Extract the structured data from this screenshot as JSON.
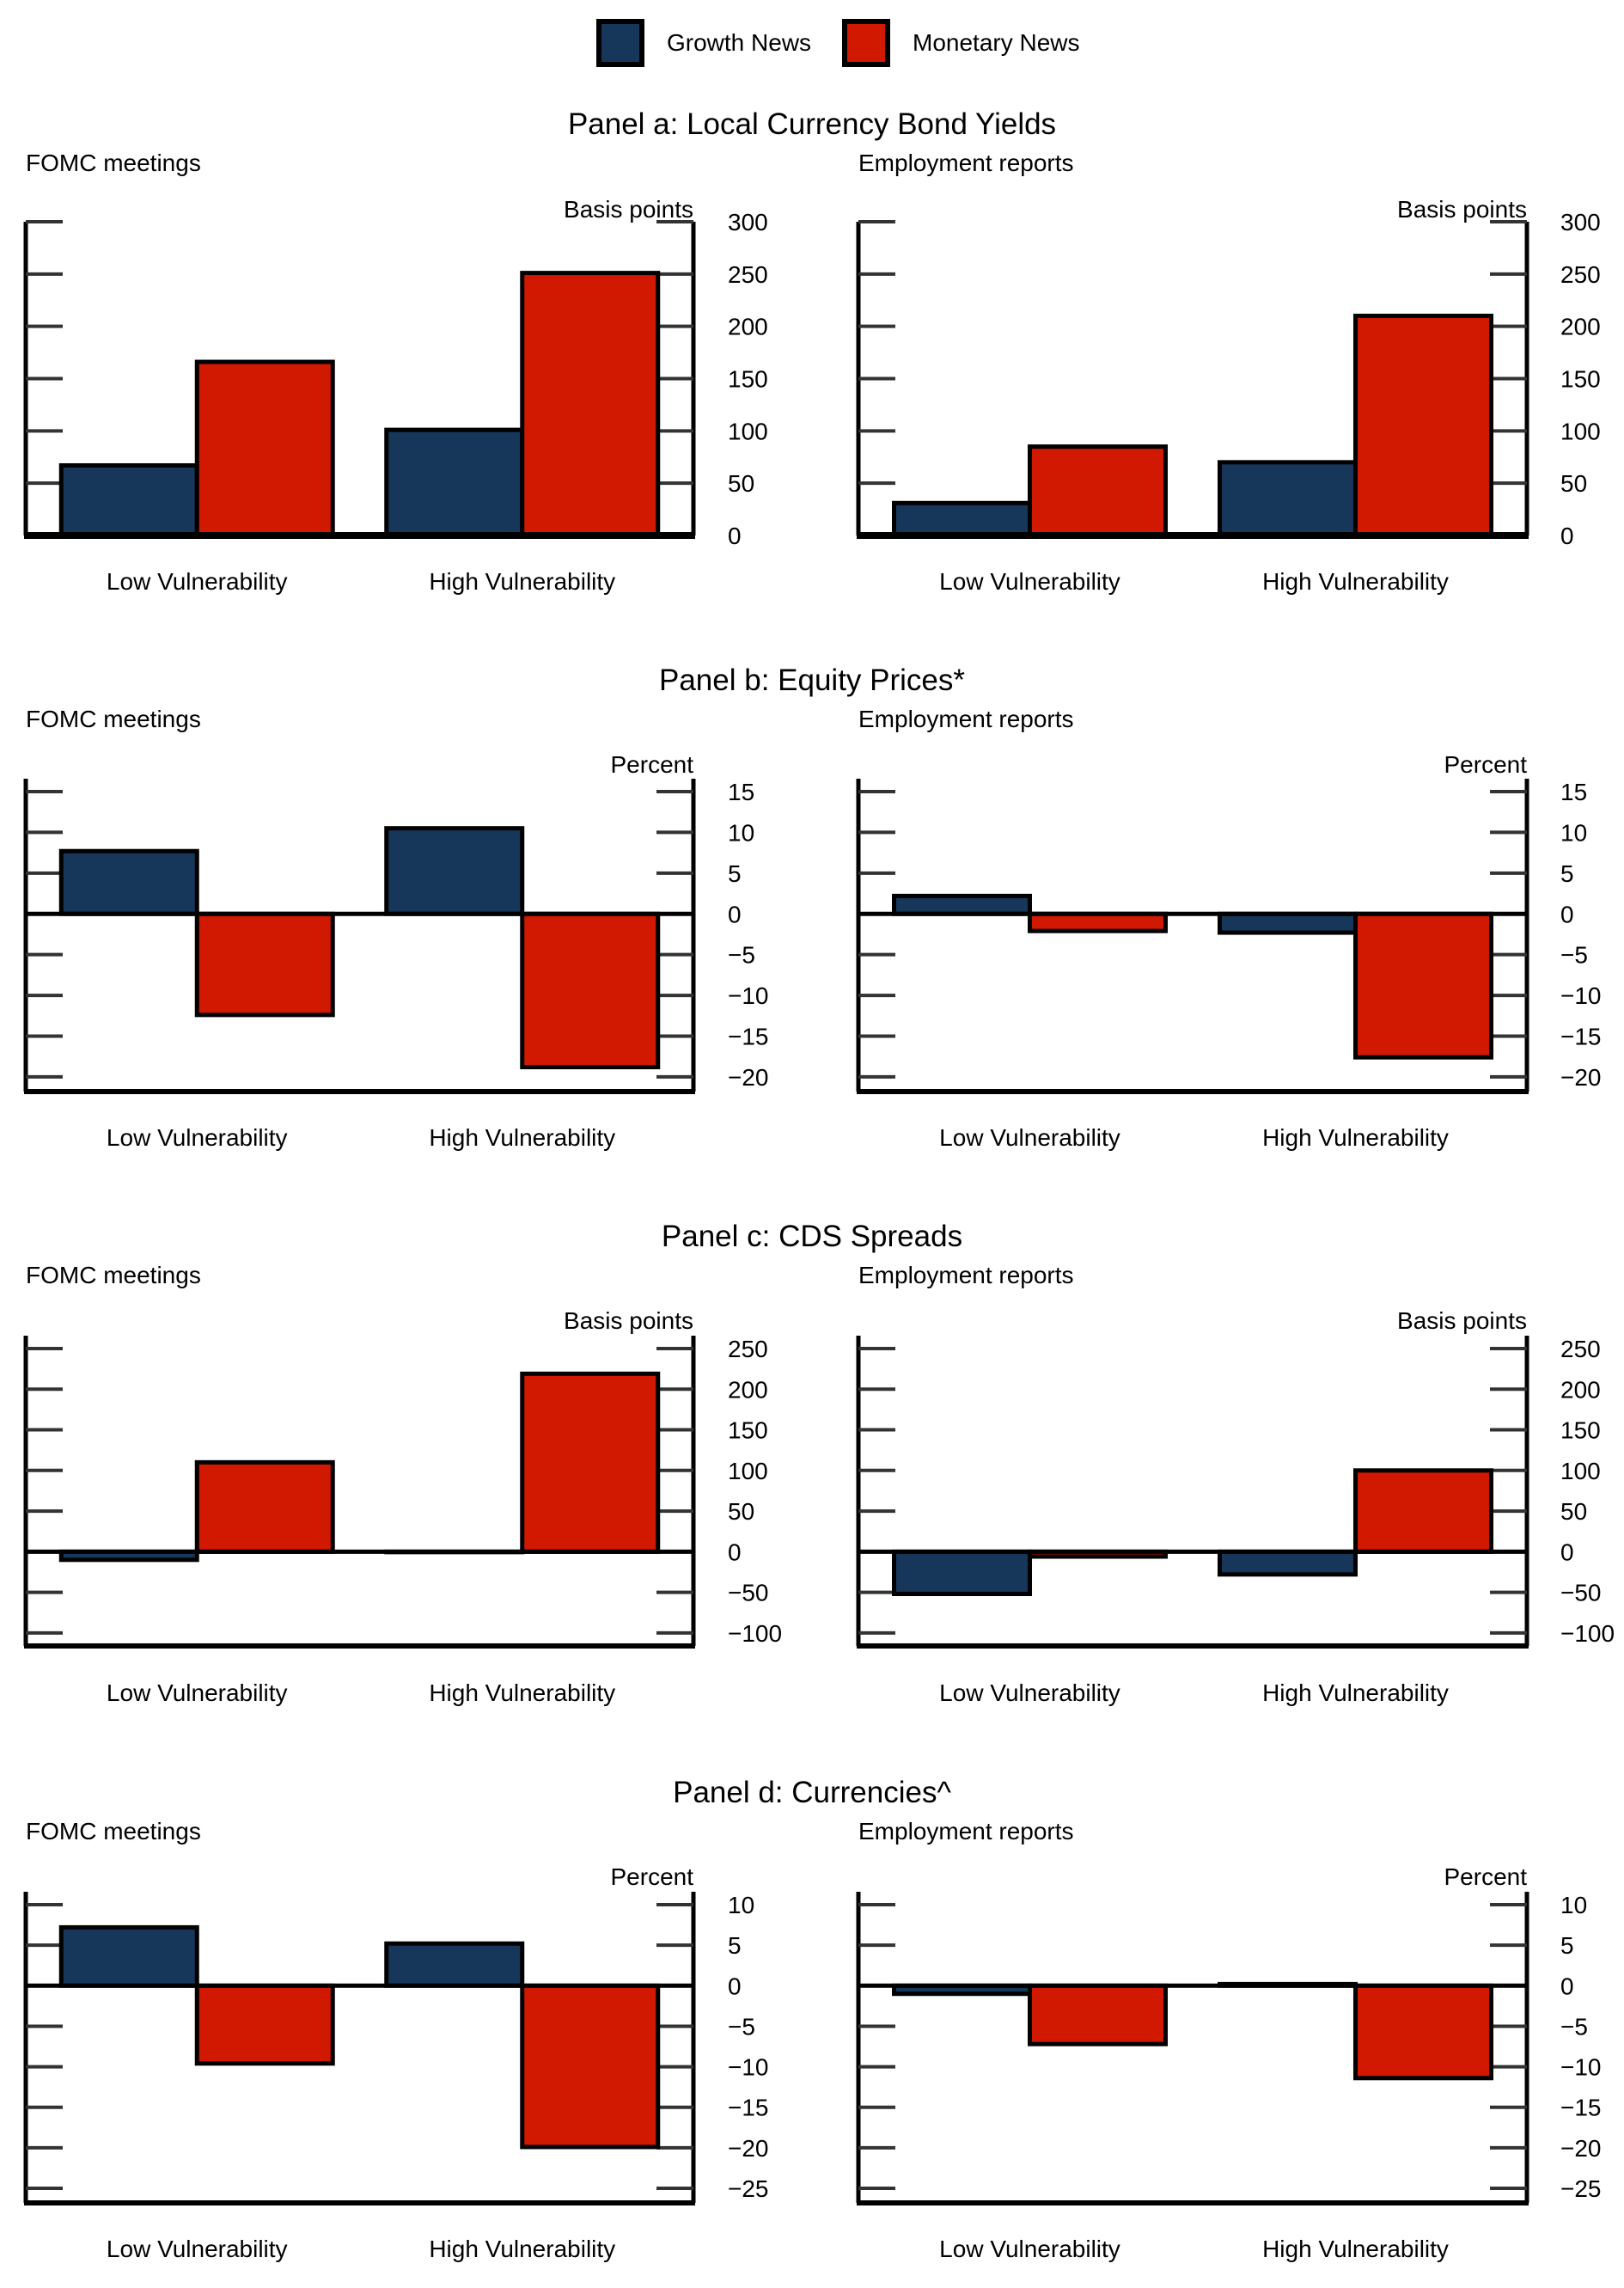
{
  "legend": [
    {
      "name": "Growth News",
      "color": "#17375a"
    },
    {
      "name": "Monetary News",
      "color": "#d11800"
    }
  ],
  "chart_data": [
    {
      "type": "bar",
      "panel_title": "Panel a: Local Currency Bond Yields",
      "title": "FOMC meetings",
      "ylabel": "Basis points",
      "categories": [
        "Low Vulnerability",
        "High Vulnerability"
      ],
      "series": [
        {
          "name": "Growth News",
          "values": [
            67,
            101
          ]
        },
        {
          "name": "Monetary News",
          "values": [
            166,
            251
          ]
        }
      ],
      "yticks": [
        0,
        50,
        100,
        150,
        200,
        250,
        300
      ],
      "ylim": [
        0,
        300
      ]
    },
    {
      "type": "bar",
      "panel_title": "Panel a: Local Currency Bond Yields",
      "title": "Employment reports",
      "ylabel": "Basis points",
      "categories": [
        "Low Vulnerability",
        "High Vulnerability"
      ],
      "series": [
        {
          "name": "Growth News",
          "values": [
            31,
            70
          ]
        },
        {
          "name": "Monetary News",
          "values": [
            85,
            210
          ]
        }
      ],
      "yticks": [
        0,
        50,
        100,
        150,
        200,
        250,
        300
      ],
      "ylim": [
        0,
        300
      ]
    },
    {
      "type": "bar",
      "panel_title": "Panel b: Equity Prices*",
      "title": "FOMC meetings",
      "ylabel": "Percent",
      "categories": [
        "Low Vulnerability",
        "High Vulnerability"
      ],
      "series": [
        {
          "name": "Growth News",
          "values": [
            7.7,
            10.5
          ]
        },
        {
          "name": "Monetary News",
          "values": [
            -12.4,
            -18.8
          ]
        }
      ],
      "yticks": [
        -20,
        -15,
        -10,
        -5,
        0,
        5,
        10,
        15
      ],
      "ylim": [
        -21.8,
        15
      ]
    },
    {
      "type": "bar",
      "panel_title": "Panel b: Equity Prices*",
      "title": "Employment reports",
      "ylabel": "Percent",
      "categories": [
        "Low Vulnerability",
        "High Vulnerability"
      ],
      "series": [
        {
          "name": "Growth News",
          "values": [
            2.2,
            -2.3
          ]
        },
        {
          "name": "Monetary News",
          "values": [
            -2.1,
            -17.6
          ]
        }
      ],
      "yticks": [
        -20,
        -15,
        -10,
        -5,
        0,
        5,
        10,
        15
      ],
      "ylim": [
        -21.8,
        15
      ]
    },
    {
      "type": "bar",
      "panel_title": "Panel c: CDS Spreads",
      "title": "FOMC meetings",
      "ylabel": "Basis points",
      "categories": [
        "Low Vulnerability",
        "High Vulnerability"
      ],
      "series": [
        {
          "name": "Growth News",
          "values": [
            -10,
            0
          ]
        },
        {
          "name": "Monetary News",
          "values": [
            110,
            219
          ]
        }
      ],
      "yticks": [
        -100,
        -50,
        0,
        50,
        100,
        150,
        200,
        250
      ],
      "ylim": [
        -116,
        250
      ]
    },
    {
      "type": "bar",
      "panel_title": "Panel c: CDS Spreads",
      "title": "Employment reports",
      "ylabel": "Basis points",
      "categories": [
        "Low Vulnerability",
        "High Vulnerability"
      ],
      "series": [
        {
          "name": "Growth News",
          "values": [
            -52,
            -28
          ]
        },
        {
          "name": "Monetary News",
          "values": [
            -6,
            100
          ]
        }
      ],
      "yticks": [
        -100,
        -50,
        0,
        50,
        100,
        150,
        200,
        250
      ],
      "ylim": [
        -116,
        250
      ]
    },
    {
      "type": "bar",
      "panel_title": "Panel d: Currencies^",
      "title": "FOMC meetings",
      "ylabel": "Percent",
      "categories": [
        "Low Vulnerability",
        "High Vulnerability"
      ],
      "series": [
        {
          "name": "Growth News",
          "values": [
            7.2,
            5.2
          ]
        },
        {
          "name": "Monetary News",
          "values": [
            -9.6,
            -19.9
          ]
        }
      ],
      "yticks": [
        -25,
        -20,
        -15,
        -10,
        -5,
        0,
        5,
        10
      ],
      "ylim": [
        -26.8,
        10
      ]
    },
    {
      "type": "bar",
      "panel_title": "Panel d: Currencies^",
      "title": "Employment reports",
      "ylabel": "Percent",
      "categories": [
        "Low Vulnerability",
        "High Vulnerability"
      ],
      "series": [
        {
          "name": "Growth News",
          "values": [
            -1.0,
            0.2
          ]
        },
        {
          "name": "Monetary News",
          "values": [
            -7.2,
            -11.4
          ]
        }
      ],
      "yticks": [
        -25,
        -20,
        -15,
        -10,
        -5,
        0,
        5,
        10
      ],
      "ylim": [
        -26.8,
        10
      ]
    }
  ],
  "panels": [
    {
      "title": "Panel a: Local Currency Bond Yields",
      "left_label": "FOMC meetings",
      "right_label": "Employment reports"
    },
    {
      "title": "Panel b: Equity Prices*",
      "left_label": "FOMC meetings",
      "right_label": "Employment reports"
    },
    {
      "title": "Panel c: CDS Spreads",
      "left_label": "FOMC meetings",
      "right_label": "Employment reports"
    },
    {
      "title": "Panel d: Currencies^",
      "left_label": "FOMC meetings",
      "right_label": "Employment reports"
    }
  ]
}
